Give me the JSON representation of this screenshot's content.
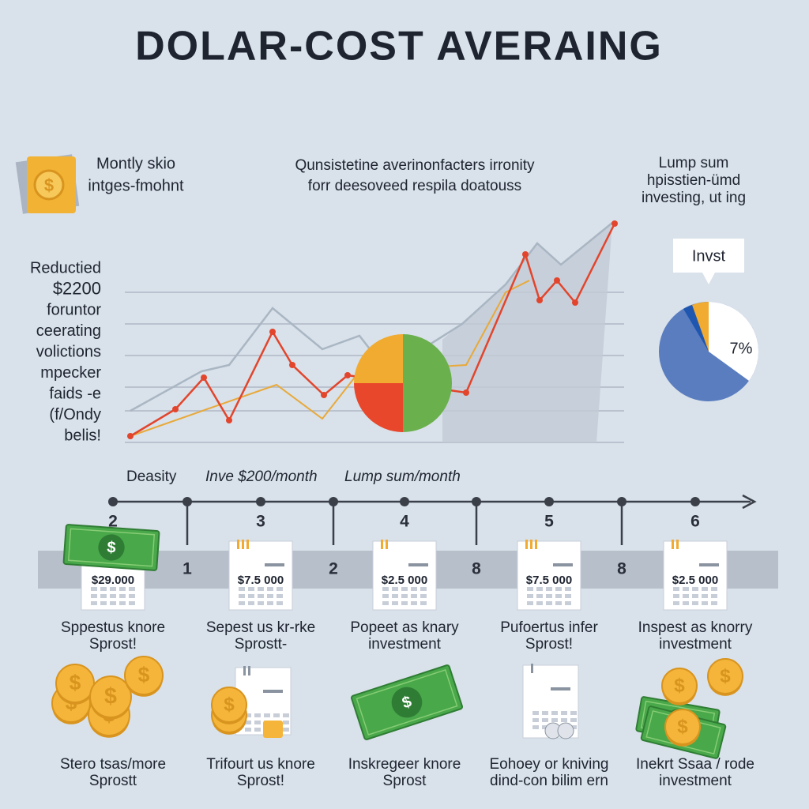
{
  "header": {
    "title": "DOLAR-COST  AVERAING"
  },
  "intro": {
    "left": [
      "Montly skio",
      "intges-fmohnt"
    ],
    "center": [
      "Qunsistetine averinonfacters irronity",
      "forr deesoveed respila doatouss"
    ],
    "right": [
      "Lump sum",
      "hpisstien-ümd",
      "investing, ut ing"
    ]
  },
  "side_note": [
    "Reductied",
    "$2200",
    "foruntor",
    "ceerating",
    "volictions",
    "mpecker",
    "faids -e",
    "(f/Ondy",
    "belis!"
  ],
  "pie": {
    "callout": "Invst",
    "label": "7%"
  },
  "timeline": {
    "labels": [
      "Deasity",
      "Inve $200/month",
      "Lump sum/month"
    ],
    "steps": [
      "2",
      "3",
      "4",
      "5",
      "6"
    ],
    "band_numbers": [
      "1",
      "2",
      "8",
      "8"
    ]
  },
  "cards": [
    {
      "amount": "$29.000",
      "caption": [
        "Sppestus knore",
        "Sprost!"
      ]
    },
    {
      "amount": "$7.5 000",
      "caption": [
        "Sepest us kr-rke",
        "Sprostt-"
      ]
    },
    {
      "amount": "$2.5 000",
      "caption": [
        "Popeet as knary",
        "investment"
      ]
    },
    {
      "amount": "$7.5 000",
      "caption": [
        "Pufoertus infer",
        "Sprost!"
      ]
    },
    {
      "amount": "$2.5 000",
      "caption": [
        "Inspest as knorry",
        "investment"
      ]
    }
  ],
  "footer": [
    [
      "Stero tsas/more",
      "Sprostt"
    ],
    [
      "Trifourt us knore",
      "Sprost!"
    ],
    [
      "Inskregeer knore",
      "Sprost"
    ],
    [
      "Eohoey or kniving",
      "dind-con bilim ern"
    ],
    [
      "Inekrt Ssaa / rode",
      "investment"
    ]
  ]
}
